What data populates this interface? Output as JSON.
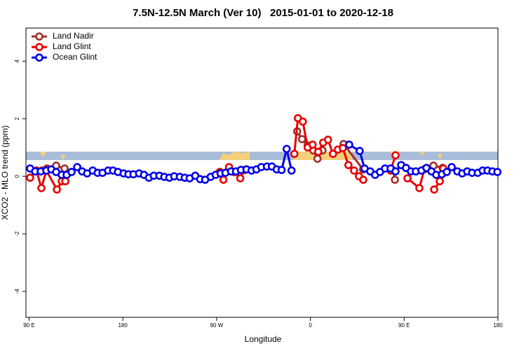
{
  "chart_data": {
    "type": "line",
    "title": "7.5N-12.5N March (Ver 10)   2015-01-01 to 2020-12-18",
    "x_label": "Longitude",
    "y_label": "XCO2 - MLO trend (ppm)",
    "xlim": [
      87,
      540
    ],
    "ylim": [
      -4.9,
      5.15
    ],
    "xticks": [
      {
        "value": 90,
        "label": "90 E"
      },
      {
        "value": 180,
        "label": "180"
      },
      {
        "value": 270,
        "label": "90 W"
      },
      {
        "value": 360,
        "label": "0"
      },
      {
        "value": 450,
        "label": "90 E"
      },
      {
        "value": 540,
        "label": "180"
      }
    ],
    "yticks": [
      -4,
      -2,
      0,
      2,
      4
    ],
    "legend": "top-left",
    "series": [
      {
        "name": "Land Nadir",
        "color": "#a0302a",
        "x": [
          102.5,
          107.2,
          116.0,
          124.1,
          null,
          347.3,
          352.0,
          357.4,
          362.8,
          366.8,
          371.6,
          null,
          391.8,
          410.6,
          null,
          439.7,
          441.1,
          null,
          478.1,
          486.9
        ],
        "values": [
          0.2,
          0.27,
          0.37,
          0.27,
          null,
          1.56,
          1.29,
          1.07,
          0.9,
          0.61,
          0.9,
          null,
          1.12,
          0.24,
          null,
          0.2,
          -0.12,
          null,
          0.37,
          0.29
        ]
      },
      {
        "name": "Land Glint",
        "color": "#e80000",
        "x": [
          91.0,
          97.1,
          101.8,
          106.6,
          116.7,
          121.4,
          124.8,
          null,
          273.1,
          276.5,
          281.9,
          286.6,
          292.7,
          296.7,
          null,
          344.6,
          348.0,
          352.7,
          357.4,
          362.1,
          367.5,
          372.2,
          376.9,
          381.7,
          386.4,
          391.1,
          396.5,
          401.9,
          406.6,
          410.7,
          null,
          437.0,
          441.7,
          null,
          453.2,
          464.6,
          469.3,
          null,
          478.8,
          484.2,
          487.5
        ],
        "values": [
          -0.05,
          0.2,
          -0.41,
          0.2,
          -0.46,
          -0.17,
          -0.17,
          null,
          0.15,
          -0.12,
          0.32,
          0.15,
          -0.07,
          0.22,
          null,
          0.78,
          2.02,
          1.9,
          1.0,
          1.1,
          0.85,
          1.17,
          1.27,
          0.78,
          0.93,
          0.98,
          0.39,
          0.2,
          0.0,
          -0.12,
          null,
          0.2,
          0.73,
          null,
          -0.07,
          -0.41,
          0.24,
          null,
          -0.46,
          -0.17,
          0.27
        ]
      },
      {
        "name": "Ocean Glint",
        "color": "#0000e8",
        "x": [
          91.0,
          95.8,
          101.2,
          106.6,
          111.3,
          116.0,
          121.4,
          126.1,
          130.8,
          136.2,
          140.9,
          145.7,
          151.1,
          155.8,
          160.5,
          165.9,
          170.6,
          175.3,
          180.7,
          185.4,
          190.2,
          195.6,
          200.3,
          205.0,
          209.7,
          215.1,
          219.8,
          224.6,
          229.3,
          234.7,
          239.4,
          244.1,
          249.5,
          254.2,
          259.0,
          264.3,
          269.1,
          273.8,
          278.5,
          283.9,
          288.6,
          293.3,
          298.7,
          303.5,
          308.2,
          312.9,
          318.3,
          323.0,
          327.7,
          332.4,
          337.2,
          341.9,
          null,
          397.2,
          407.3,
          412.0,
          417.4,
          422.1,
          426.8,
          431.6,
          437.0,
          441.7,
          447.1,
          451.8,
          456.5,
          461.2,
          466.6,
          471.4,
          476.1,
          480.8,
          486.2,
          490.9,
          495.6,
          501.0,
          505.7,
          510.5,
          515.2,
          520.6,
          525.3,
          530.0,
          534.7,
          539.5
        ],
        "values": [
          0.27,
          0.17,
          0.17,
          0.2,
          0.24,
          0.15,
          0.05,
          0.05,
          0.15,
          0.32,
          0.17,
          0.1,
          0.2,
          0.12,
          0.12,
          0.2,
          0.2,
          0.15,
          0.1,
          0.07,
          0.07,
          0.1,
          0.05,
          -0.05,
          0.02,
          0.02,
          -0.02,
          -0.05,
          0.0,
          -0.02,
          -0.05,
          -0.07,
          0.02,
          -0.1,
          -0.12,
          -0.02,
          0.05,
          0.1,
          0.12,
          0.17,
          0.17,
          0.22,
          0.24,
          0.2,
          0.24,
          0.32,
          0.34,
          0.34,
          0.24,
          0.22,
          0.95,
          0.2,
          null,
          1.1,
          0.88,
          0.27,
          0.17,
          0.05,
          0.15,
          0.27,
          0.27,
          0.17,
          0.39,
          0.29,
          0.17,
          0.17,
          0.2,
          0.29,
          0.17,
          0.05,
          0.07,
          0.15,
          0.32,
          0.17,
          0.1,
          0.17,
          0.12,
          0.12,
          0.2,
          0.2,
          0.17,
          0.15
        ]
      }
    ]
  }
}
